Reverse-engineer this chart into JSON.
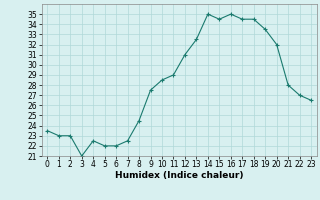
{
  "x": [
    0,
    1,
    2,
    3,
    4,
    5,
    6,
    7,
    8,
    9,
    10,
    11,
    12,
    13,
    14,
    15,
    16,
    17,
    18,
    19,
    20,
    21,
    22,
    23
  ],
  "y": [
    23.5,
    23.0,
    23.0,
    21.0,
    22.5,
    22.0,
    22.0,
    22.5,
    24.5,
    27.5,
    28.5,
    29.0,
    31.0,
    32.5,
    35.0,
    34.5,
    35.0,
    34.5,
    34.5,
    33.5,
    32.0,
    28.0,
    27.0,
    26.5
  ],
  "line_color": "#1a7a6e",
  "marker": "+",
  "marker_size": 3,
  "background_color": "#d8f0f0",
  "grid_color": "#b0d8d8",
  "xlabel": "Humidex (Indice chaleur)",
  "xlim": [
    -0.5,
    23.5
  ],
  "ylim": [
    21,
    36
  ],
  "yticks": [
    21,
    22,
    23,
    24,
    25,
    26,
    27,
    28,
    29,
    30,
    31,
    32,
    33,
    34,
    35
  ],
  "xticks": [
    0,
    1,
    2,
    3,
    4,
    5,
    6,
    7,
    8,
    9,
    10,
    11,
    12,
    13,
    14,
    15,
    16,
    17,
    18,
    19,
    20,
    21,
    22,
    23
  ],
  "tick_fontsize": 5.5,
  "label_fontsize": 6.5
}
